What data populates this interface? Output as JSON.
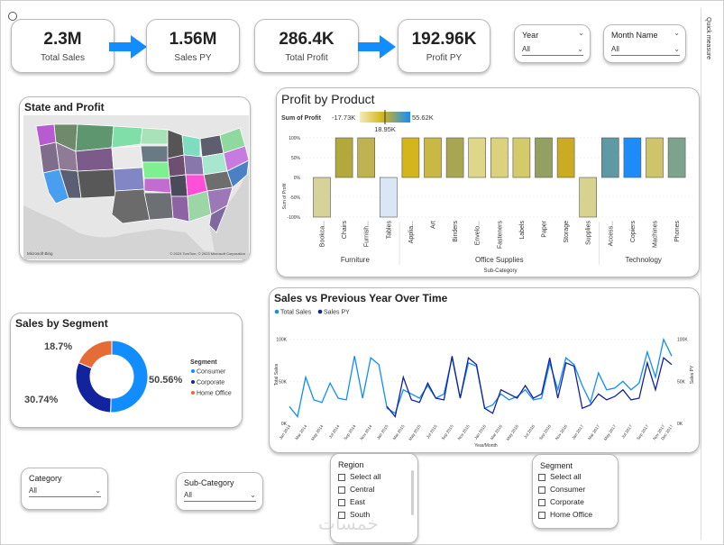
{
  "kpis": {
    "total_sales": {
      "value": "2.3M",
      "label": "Total Sales"
    },
    "sales_py": {
      "value": "1.56M",
      "label": "Sales PY"
    },
    "total_profit": {
      "value": "286.4K",
      "label": "Total Profit"
    },
    "profit_py": {
      "value": "192.96K",
      "label": "Profit PY"
    }
  },
  "filters": {
    "year": {
      "title": "Year",
      "value": "All"
    },
    "month": {
      "title": "Month Name",
      "value": "All"
    },
    "category": {
      "title": "Category",
      "value": "All"
    },
    "subcategory": {
      "title": "Sub-Category",
      "value": "All"
    }
  },
  "region_slicer": {
    "title": "Region",
    "options": [
      "Select all",
      "Central",
      "East",
      "South"
    ]
  },
  "segment_slicer": {
    "title": "Segment",
    "options": [
      "Select all",
      "Consumer",
      "Corporate",
      "Home Office"
    ]
  },
  "quick_measure": "Quick measure",
  "watermark": "خمسات",
  "colors": {
    "accent": "#118DFF",
    "navy": "#12239E",
    "orange": "#E66C37",
    "gold": "#C9A800"
  },
  "chart_data": [
    {
      "type": "map",
      "title": "State and Profit",
      "credits": "© 2023 TomTom, © 2023 Microsoft Corporation"
    },
    {
      "type": "bar",
      "title": "Profit by Product",
      "legend_title": "Sum of Profit",
      "legend_min": "-17.73K",
      "legend_mid": "18.95K",
      "legend_max": "55.62K",
      "ylabel": "Sum of Profit",
      "xlabel": "Sub-Category",
      "ytick_labels": [
        "100%",
        "50%",
        "0%",
        "-50%",
        "-100%"
      ],
      "ylim": [
        -100,
        100
      ],
      "groups": [
        {
          "name": "Furniture",
          "categories": [
            "Bookca...",
            "Chairs",
            "Furnish...",
            "Tables"
          ],
          "values": [
            -100,
            100,
            100,
            -100
          ],
          "colors": [
            "#D6D29A",
            "#B3A83C",
            "#BFB34F",
            "#D8E6F5"
          ]
        },
        {
          "name": "Office Supplies",
          "categories": [
            "Applia...",
            "Art",
            "Binders",
            "Envelo...",
            "Fasteners",
            "Labels",
            "Paper",
            "Storage",
            "Supplies"
          ],
          "values": [
            100,
            100,
            100,
            100,
            100,
            100,
            100,
            100,
            -100
          ],
          "colors": [
            "#D4B51A",
            "#C9B842",
            "#A9A652",
            "#DED78A",
            "#DCD27D",
            "#D3CB6A",
            "#94A062",
            "#CCAB24",
            "#D7D28F"
          ]
        },
        {
          "name": "Technology",
          "categories": [
            "Access...",
            "Copiers",
            "Machines",
            "Phones"
          ],
          "values": [
            100,
            100,
            100,
            100
          ],
          "colors": [
            "#5D9AA4",
            "#1C8DF8",
            "#CFC46A",
            "#7DA38C"
          ]
        }
      ]
    },
    {
      "type": "pie",
      "title": "Sales by Segment",
      "legend_title": "Segment",
      "slices": [
        {
          "label": "Consumer",
          "value": 50.56,
          "display": "50.56%",
          "color": "#118DFF"
        },
        {
          "label": "Corporate",
          "value": 30.74,
          "display": "30.74%",
          "color": "#12239E"
        },
        {
          "label": "Home Office",
          "value": 18.7,
          "display": "18.7%",
          "color": "#E66C37"
        }
      ]
    },
    {
      "type": "line",
      "title": "Sales vs Previous Year Over Time",
      "xlabel": "Year/Month",
      "ylabel_left": "Total Sales",
      "ylabel_right": "Sales PY",
      "ytick_left": [
        "100K",
        "50K",
        "0K"
      ],
      "ytick_right": [
        "100K",
        "50K",
        "0K"
      ],
      "ylim": [
        0,
        120
      ],
      "x": [
        "Jan 2014",
        "Feb 2014",
        "Mar 2014",
        "Apr 2014",
        "May 2014",
        "Jun 2014",
        "Jul 2014",
        "Aug 2014",
        "Sep 2014",
        "Oct 2014",
        "Nov 2014",
        "Dec 2014",
        "Jan 2015",
        "Feb 2015",
        "Mar 2015",
        "Apr 2015",
        "May 2015",
        "Jun 2015",
        "Jul 2015",
        "Aug 2015",
        "Sep 2015",
        "Oct 2015",
        "Nov 2015",
        "Dec 2015",
        "Jan 2016",
        "Feb 2016",
        "Mar 2016",
        "Apr 2016",
        "May 2016",
        "Jun 2016",
        "Jul 2016",
        "Aug 2016",
        "Sep 2016",
        "Oct 2016",
        "Nov 2016",
        "Dec 2016",
        "Jan 2017",
        "Feb 2017",
        "Mar 2017",
        "Apr 2017",
        "May 2017",
        "Jun 2017",
        "Jul 2017",
        "Aug 2017",
        "Sep 2017",
        "Oct 2017",
        "Nov 2017",
        "Dec 2017"
      ],
      "x_tick_labels": [
        "Jan 2014",
        "Mar 2014",
        "May 2014",
        "Jul 2014",
        "Sep 2014",
        "Nov 2014",
        "Jan 2015",
        "Mar 2015",
        "May 2015",
        "Jul 2015",
        "Sep 2015",
        "Nov 2015",
        "Jan 2016",
        "Mar 2016",
        "May 2016",
        "Jul 2016",
        "Sep 2016",
        "Nov 2016",
        "Jan 2017",
        "Mar 2017",
        "May 2017",
        "Jul 2017",
        "Sep 2017",
        "Nov 2017",
        "Dec 2017"
      ],
      "series": [
        {
          "name": "Total Sales",
          "color": "#118DFF",
          "values": [
            20,
            8,
            55,
            28,
            25,
            48,
            30,
            28,
            80,
            30,
            78,
            70,
            18,
            12,
            40,
            35,
            30,
            45,
            30,
            35,
            78,
            30,
            72,
            68,
            18,
            22,
            35,
            28,
            32,
            40,
            28,
            30,
            72,
            40,
            78,
            70,
            45,
            25,
            60,
            40,
            42,
            50,
            40,
            48,
            85,
            55,
            100,
            80
          ]
        },
        {
          "name": "Sales PY",
          "color": "#12239E",
          "values": [
            null,
            null,
            null,
            null,
            null,
            null,
            null,
            null,
            null,
            null,
            null,
            null,
            20,
            8,
            55,
            28,
            25,
            48,
            30,
            28,
            80,
            30,
            78,
            70,
            18,
            12,
            40,
            35,
            30,
            45,
            30,
            35,
            78,
            30,
            72,
            68,
            18,
            22,
            35,
            28,
            32,
            40,
            28,
            30,
            72,
            40,
            78,
            70
          ]
        }
      ]
    }
  ]
}
